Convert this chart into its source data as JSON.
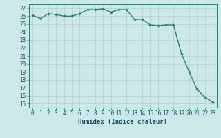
{
  "xlabel": "Humidex (Indice chaleur)",
  "ylabel": "",
  "x_values": [
    0,
    1,
    2,
    3,
    4,
    5,
    6,
    7,
    8,
    9,
    10,
    11,
    12,
    13,
    14,
    15,
    16,
    17,
    18,
    19,
    20,
    21,
    22,
    23
  ],
  "y_values": [
    26.1,
    25.7,
    26.3,
    26.2,
    26.0,
    26.0,
    26.3,
    26.8,
    26.8,
    26.9,
    26.5,
    26.8,
    26.8,
    25.6,
    25.6,
    24.9,
    24.8,
    24.9,
    24.9,
    21.3,
    19.0,
    16.8,
    15.8,
    15.2
  ],
  "line_color": "#2e7d6e",
  "marker": "D",
  "marker_size": 1.8,
  "line_width": 1.0,
  "bg_color": "#cce8e8",
  "grid_color": "#b0d0d0",
  "tick_color": "#2e7d6e",
  "label_color": "#1a4a5a",
  "ylim": [
    14.5,
    27.5
  ],
  "yticks": [
    15,
    16,
    17,
    18,
    19,
    20,
    21,
    22,
    23,
    24,
    25,
    26,
    27
  ],
  "xlim": [
    -0.5,
    23.5
  ],
  "xticks": [
    0,
    1,
    2,
    3,
    4,
    5,
    6,
    7,
    8,
    9,
    10,
    11,
    12,
    13,
    14,
    15,
    16,
    17,
    18,
    19,
    20,
    21,
    22,
    23
  ],
  "tick_fontsize": 5.5,
  "xlabel_fontsize": 6.5
}
